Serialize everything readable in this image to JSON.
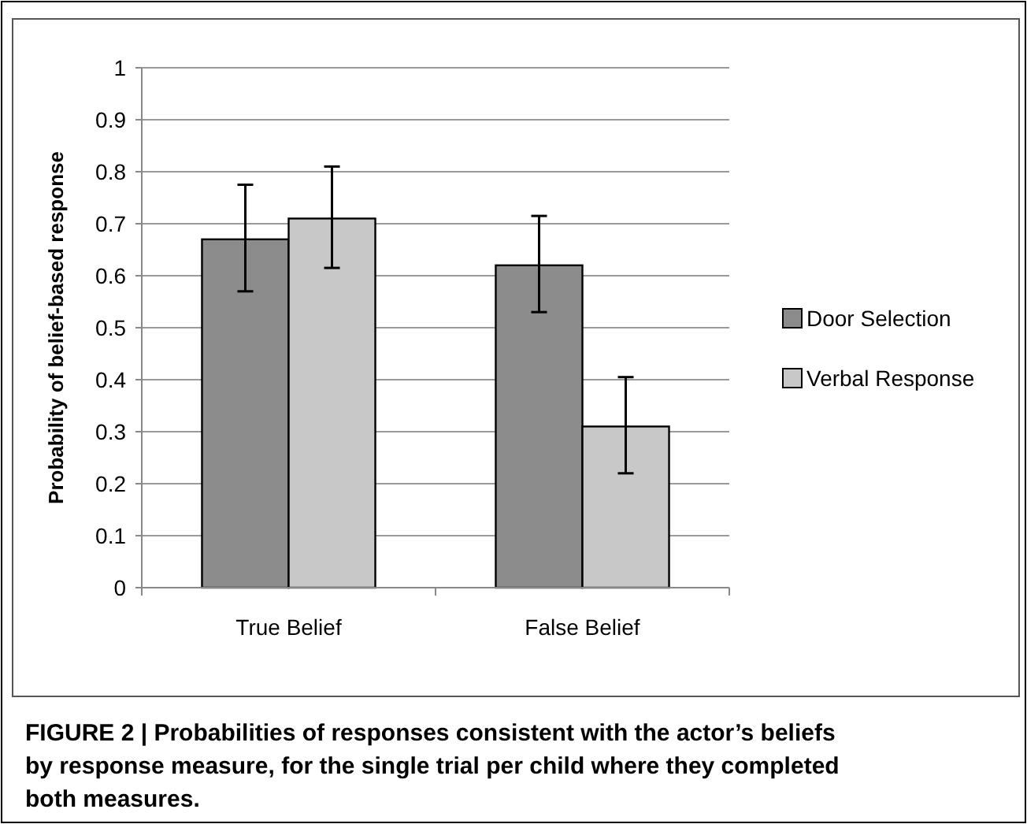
{
  "chart_data": {
    "type": "bar",
    "ylabel": "Probability of belief-based response",
    "categories": [
      "True Belief",
      "False Belief"
    ],
    "series": [
      {
        "name": "Door Selection",
        "color": "#8c8c8c",
        "values": [
          0.67,
          0.62
        ],
        "errors": [
          [
            0.57,
            0.775
          ],
          [
            0.53,
            0.715
          ]
        ]
      },
      {
        "name": "Verbal Response",
        "color": "#c8c8c8",
        "values": [
          0.71,
          0.31
        ],
        "errors": [
          [
            0.615,
            0.81
          ],
          [
            0.22,
            0.405
          ]
        ]
      }
    ],
    "ylim": [
      0,
      1
    ],
    "yticks": [
      0,
      0.1,
      0.2,
      0.3,
      0.4,
      0.5,
      0.6,
      0.7,
      0.8,
      0.9,
      1
    ],
    "grid": "y",
    "legend": "right",
    "annotations": [
      "FIGURE 2 | Probabilities of responses consistent with the actor’s beliefs by response measure, for the single trial per child where they completed both measures."
    ]
  }
}
